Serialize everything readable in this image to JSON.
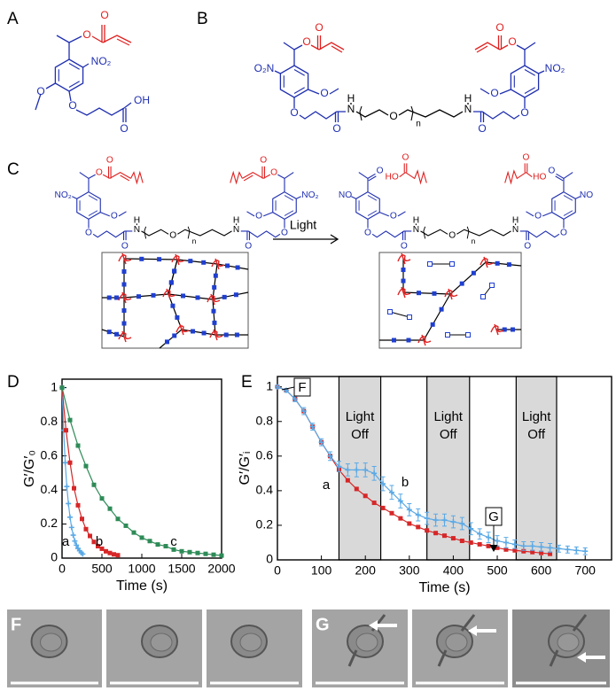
{
  "panel_labels": [
    "A",
    "B",
    "C",
    "D",
    "E"
  ],
  "structure_a": {
    "labels": [
      "O",
      "O",
      "NO₂",
      "O",
      "O",
      "O",
      "OH"
    ]
  },
  "structure_b": {
    "labels": [
      "O",
      "O",
      "O₂N",
      "O",
      "O",
      "O",
      "H",
      "N",
      "O",
      "n",
      "H",
      "N",
      "O",
      "O",
      "O",
      "NO₂",
      "O",
      "O"
    ]
  },
  "structure_c_left": {
    "labels": [
      "O",
      "O",
      "NO₂",
      "O",
      "O",
      "O",
      "H",
      "N",
      "O",
      "n",
      "H",
      "N",
      "O",
      "O",
      "O",
      "NO₂",
      "O",
      "O"
    ]
  },
  "structure_c_right": {
    "labels": [
      "O",
      "HO",
      "O",
      "NO",
      "O",
      "O",
      "O",
      "H",
      "N",
      "O",
      "n",
      "H",
      "N",
      "O",
      "O",
      "O",
      "NO",
      "O",
      "HO",
      "O"
    ]
  },
  "light_arrow_label": "Light",
  "chart_data": [
    {
      "type": "line",
      "xlabel": "Time (s)",
      "ylabel": "G′/G′₀",
      "xlim": [
        0,
        2000
      ],
      "ylim": [
        0,
        1.05
      ],
      "xticks": [
        0,
        500,
        1000,
        1500,
        2000
      ],
      "yticks": [
        0,
        0.2,
        0.4,
        0.6,
        0.8,
        1
      ],
      "annotations": [
        "a",
        "b",
        "c"
      ],
      "series": [
        {
          "name": "a",
          "color": "#5aa9e6",
          "marker": "plus",
          "x": [
            0,
            20,
            40,
            60,
            80,
            100,
            120,
            140,
            160,
            180,
            200,
            220,
            240,
            260
          ],
          "values": [
            1,
            0.75,
            0.56,
            0.42,
            0.32,
            0.24,
            0.18,
            0.135,
            0.1,
            0.076,
            0.057,
            0.043,
            0.032,
            0.024
          ]
        },
        {
          "name": "b",
          "color": "#d62728",
          "marker": "square",
          "x": [
            0,
            50,
            100,
            150,
            200,
            250,
            300,
            350,
            400,
            450,
            500,
            550,
            600,
            650,
            700
          ],
          "values": [
            1,
            0.75,
            0.56,
            0.41,
            0.31,
            0.23,
            0.17,
            0.13,
            0.095,
            0.07,
            0.055,
            0.04,
            0.03,
            0.022,
            0.017
          ]
        },
        {
          "name": "c",
          "color": "#2e8b57",
          "marker": "square",
          "x": [
            0,
            100,
            200,
            300,
            400,
            500,
            600,
            700,
            800,
            900,
            1000,
            1100,
            1200,
            1300,
            1400,
            1500,
            1600,
            1700,
            1800,
            1900,
            2000
          ],
          "values": [
            1,
            0.81,
            0.66,
            0.54,
            0.43,
            0.35,
            0.29,
            0.23,
            0.19,
            0.15,
            0.12,
            0.1,
            0.08,
            0.07,
            0.05,
            0.04,
            0.035,
            0.03,
            0.025,
            0.02,
            0.015
          ]
        }
      ]
    },
    {
      "type": "line",
      "xlabel": "Time (s)",
      "ylabel": "G′/G′ᵢ",
      "xlim": [
        0,
        760
      ],
      "ylim": [
        0,
        1.06
      ],
      "xticks": [
        0,
        100,
        200,
        300,
        400,
        500,
        600,
        700
      ],
      "yticks": [
        0,
        0.2,
        0.4,
        0.6,
        0.8,
        1
      ],
      "shaded": [
        {
          "x": [
            140,
            235
          ],
          "label": [
            "Light",
            "Off"
          ]
        },
        {
          "x": [
            340,
            437
          ],
          "label": [
            "Light",
            "Off"
          ]
        },
        {
          "x": [
            543,
            635
          ],
          "label": [
            "Light",
            "Off"
          ]
        }
      ],
      "annotations": [
        "a",
        "b",
        "F",
        "G"
      ],
      "series": [
        {
          "name": "a",
          "color": "#d62728",
          "marker": "square",
          "x": [
            0,
            20,
            40,
            60,
            80,
            100,
            120,
            140,
            160,
            180,
            200,
            220,
            240,
            260,
            280,
            300,
            320,
            340,
            360,
            380,
            400,
            420,
            440,
            460,
            480,
            500,
            520,
            540,
            560,
            580,
            600,
            620
          ],
          "values": [
            1,
            0.98,
            0.93,
            0.86,
            0.77,
            0.68,
            0.6,
            0.52,
            0.46,
            0.41,
            0.37,
            0.33,
            0.3,
            0.27,
            0.24,
            0.21,
            0.19,
            0.17,
            0.155,
            0.14,
            0.125,
            0.11,
            0.1,
            0.09,
            0.08,
            0.07,
            0.06,
            0.055,
            0.05,
            0.045,
            0.04,
            0.035
          ]
        },
        {
          "name": "b",
          "color": "#5aa9e6",
          "marker": "plus",
          "x": [
            0,
            20,
            40,
            60,
            80,
            100,
            120,
            140,
            160,
            180,
            200,
            220,
            240,
            260,
            280,
            300,
            320,
            340,
            360,
            380,
            400,
            420,
            440,
            460,
            480,
            500,
            520,
            540,
            560,
            580,
            600,
            620,
            640,
            660,
            680,
            700
          ],
          "values": [
            1,
            0.98,
            0.93,
            0.86,
            0.77,
            0.68,
            0.6,
            0.54,
            0.52,
            0.52,
            0.52,
            0.5,
            0.44,
            0.39,
            0.34,
            0.29,
            0.26,
            0.24,
            0.23,
            0.23,
            0.22,
            0.21,
            0.18,
            0.15,
            0.13,
            0.11,
            0.1,
            0.09,
            0.08,
            0.08,
            0.075,
            0.07,
            0.065,
            0.06,
            0.055,
            0.05
          ],
          "errors": [
            0.01,
            0.01,
            0.015,
            0.02,
            0.02,
            0.02,
            0.025,
            0.03,
            0.035,
            0.04,
            0.04,
            0.04,
            0.04,
            0.04,
            0.04,
            0.035,
            0.035,
            0.035,
            0.035,
            0.035,
            0.035,
            0.035,
            0.035,
            0.03,
            0.03,
            0.03,
            0.03,
            0.025,
            0.025,
            0.025,
            0.025,
            0.025,
            0.02,
            0.02,
            0.02,
            0.02
          ]
        }
      ]
    }
  ],
  "micrographs": {
    "labels": [
      "F",
      "G"
    ]
  }
}
